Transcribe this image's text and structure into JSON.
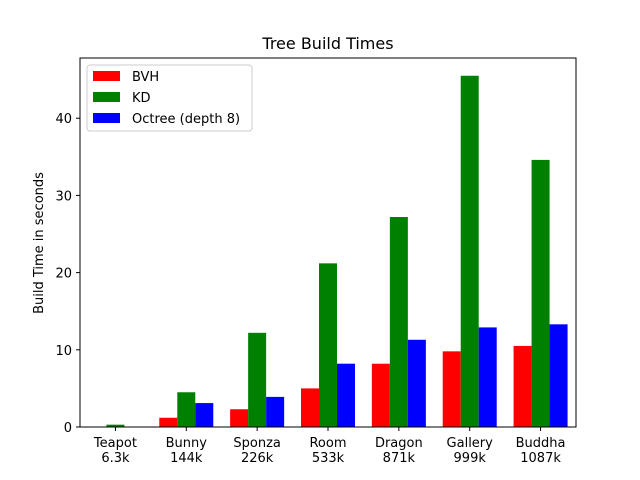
{
  "chart_data": {
    "type": "bar",
    "title": "Tree Build Times",
    "xlabel": "",
    "ylabel": "Build Time in seconds",
    "categories": [
      [
        "Teapot",
        "6.3k"
      ],
      [
        "Bunny",
        "144k"
      ],
      [
        "Sponza",
        "226k"
      ],
      [
        "Room",
        "533k"
      ],
      [
        "Dragon",
        "871k"
      ],
      [
        "Gallery",
        "999k"
      ],
      [
        "Buddha",
        "1087k"
      ]
    ],
    "series": [
      {
        "name": "BVH",
        "color": "#ff0000",
        "values": [
          0.02,
          1.2,
          2.3,
          5.0,
          8.2,
          9.8,
          10.5
        ]
      },
      {
        "name": "KD",
        "color": "#008000",
        "values": [
          0.3,
          4.5,
          12.2,
          21.2,
          27.2,
          45.5,
          34.6
        ]
      },
      {
        "name": "Octree (depth 8)",
        "color": "#0000ff",
        "values": [
          0.02,
          3.1,
          3.9,
          8.2,
          11.3,
          12.9,
          13.3
        ]
      }
    ],
    "ylim": [
      0,
      47.8
    ],
    "yticks": [
      0,
      10,
      20,
      30,
      40
    ],
    "grid": false,
    "legend_position": "upper-left"
  }
}
